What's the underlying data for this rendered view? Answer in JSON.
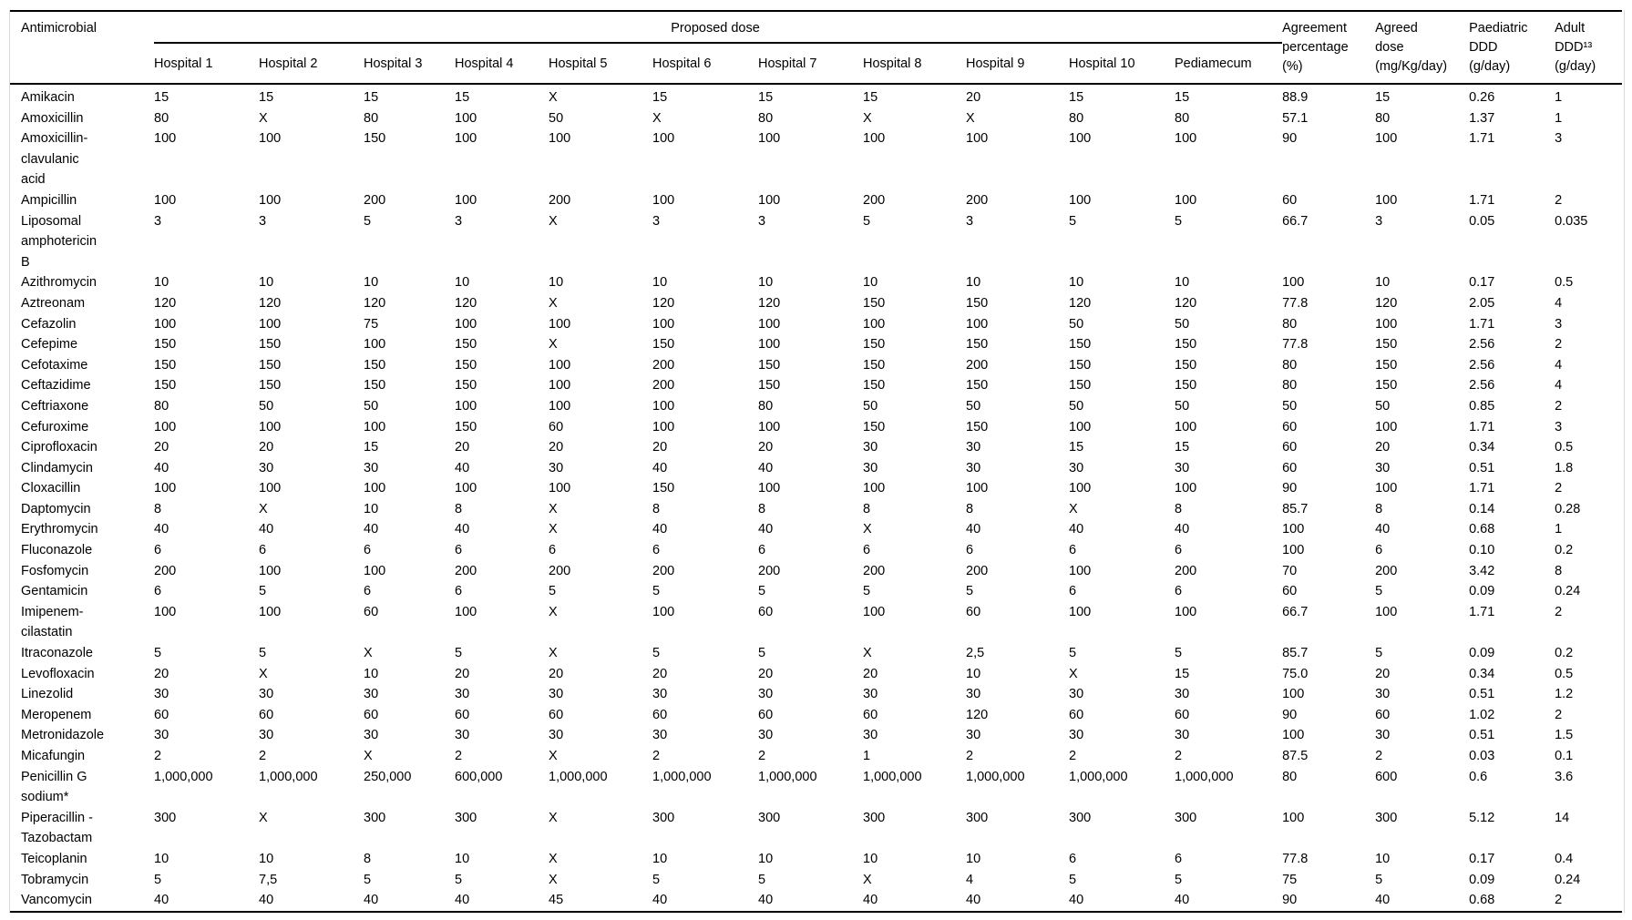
{
  "table": {
    "headers": {
      "antimicrobial": "Antimicrobial",
      "group": "Proposed dose"
    },
    "dose_columns": [
      "Hospital 1",
      "Hospital 2",
      "Hospital 3",
      "Hospital 4",
      "Hospital 5",
      "Hospital 6",
      "Hospital 7",
      "Hospital 8",
      "Hospital 9",
      "Hospital 10",
      "Pediamecum"
    ],
    "summary_columns": [
      "Agreement\npercentage\n(%)",
      "Agreed\ndose\n(mg/Kg/day)",
      "Paediatric\nDDD\n(g/day)",
      "Adult\nDDD¹³\n(g/day)"
    ],
    "rows": [
      {
        "name": "Amikacin",
        "doses": [
          "15",
          "15",
          "15",
          "15",
          "X",
          "15",
          "15",
          "15",
          "20",
          "15",
          "15"
        ],
        "agreement": "88.9",
        "agreed_dose": "15",
        "paediatric_ddd": "0.26",
        "adult_ddd": "1"
      },
      {
        "name": "Amoxicillin",
        "doses": [
          "80",
          "X",
          "80",
          "100",
          "50",
          "X",
          "80",
          "X",
          "X",
          "80",
          "80"
        ],
        "agreement": "57.1",
        "agreed_dose": "80",
        "paediatric_ddd": "1.37",
        "adult_ddd": "1"
      },
      {
        "name": "Amoxicillin-\nclavulanic\nacid",
        "doses": [
          "100",
          "100",
          "150",
          "100",
          "100",
          "100",
          "100",
          "100",
          "100",
          "100",
          "100"
        ],
        "agreement": "90",
        "agreed_dose": "100",
        "paediatric_ddd": "1.71",
        "adult_ddd": "3"
      },
      {
        "name": "Ampicillin",
        "doses": [
          "100",
          "100",
          "200",
          "100",
          "200",
          "100",
          "100",
          "200",
          "200",
          "100",
          "100"
        ],
        "agreement": "60",
        "agreed_dose": "100",
        "paediatric_ddd": "1.71",
        "adult_ddd": "2"
      },
      {
        "name": "Liposomal\namphotericin\nB",
        "doses": [
          "3",
          "3",
          "5",
          "3",
          "X",
          "3",
          "3",
          "5",
          "3",
          "5",
          "5"
        ],
        "agreement": "66.7",
        "agreed_dose": "3",
        "paediatric_ddd": "0.05",
        "adult_ddd": "0.035"
      },
      {
        "name": "Azithromycin",
        "doses": [
          "10",
          "10",
          "10",
          "10",
          "10",
          "10",
          "10",
          "10",
          "10",
          "10",
          "10"
        ],
        "agreement": "100",
        "agreed_dose": "10",
        "paediatric_ddd": "0.17",
        "adult_ddd": "0.5"
      },
      {
        "name": "Aztreonam",
        "doses": [
          "120",
          "120",
          "120",
          "120",
          "X",
          "120",
          "120",
          "150",
          "150",
          "120",
          "120"
        ],
        "agreement": "77.8",
        "agreed_dose": "120",
        "paediatric_ddd": "2.05",
        "adult_ddd": "4"
      },
      {
        "name": "Cefazolin",
        "doses": [
          "100",
          "100",
          "75",
          "100",
          "100",
          "100",
          "100",
          "100",
          "100",
          "50",
          "50"
        ],
        "agreement": "80",
        "agreed_dose": "100",
        "paediatric_ddd": "1.71",
        "adult_ddd": "3"
      },
      {
        "name": "Cefepime",
        "doses": [
          "150",
          "150",
          "100",
          "150",
          "X",
          "150",
          "100",
          "150",
          "150",
          "150",
          "150"
        ],
        "agreement": "77.8",
        "agreed_dose": "150",
        "paediatric_ddd": "2.56",
        "adult_ddd": "2"
      },
      {
        "name": "Cefotaxime",
        "doses": [
          "150",
          "150",
          "150",
          "150",
          "100",
          "200",
          "150",
          "150",
          "200",
          "150",
          "150"
        ],
        "agreement": "80",
        "agreed_dose": "150",
        "paediatric_ddd": "2.56",
        "adult_ddd": "4"
      },
      {
        "name": "Ceftazidime",
        "doses": [
          "150",
          "150",
          "150",
          "150",
          "100",
          "200",
          "150",
          "150",
          "150",
          "150",
          "150"
        ],
        "agreement": "80",
        "agreed_dose": "150",
        "paediatric_ddd": "2.56",
        "adult_ddd": "4"
      },
      {
        "name": "Ceftriaxone",
        "doses": [
          "80",
          "50",
          "50",
          "100",
          "100",
          "100",
          "80",
          "50",
          "50",
          "50",
          "50"
        ],
        "agreement": "50",
        "agreed_dose": "50",
        "paediatric_ddd": "0.85",
        "adult_ddd": "2"
      },
      {
        "name": "Cefuroxime",
        "doses": [
          "100",
          "100",
          "100",
          "150",
          "60",
          "100",
          "100",
          "150",
          "150",
          "100",
          "100"
        ],
        "agreement": "60",
        "agreed_dose": "100",
        "paediatric_ddd": "1.71",
        "adult_ddd": "3"
      },
      {
        "name": "Ciprofloxacin",
        "doses": [
          "20",
          "20",
          "15",
          "20",
          "20",
          "20",
          "20",
          "30",
          "30",
          "15",
          "15"
        ],
        "agreement": "60",
        "agreed_dose": "20",
        "paediatric_ddd": "0.34",
        "adult_ddd": "0.5"
      },
      {
        "name": "Clindamycin",
        "doses": [
          "40",
          "30",
          "30",
          "40",
          "30",
          "40",
          "40",
          "30",
          "30",
          "30",
          "30"
        ],
        "agreement": "60",
        "agreed_dose": "30",
        "paediatric_ddd": "0.51",
        "adult_ddd": "1.8"
      },
      {
        "name": "Cloxacillin",
        "doses": [
          "100",
          "100",
          "100",
          "100",
          "100",
          "150",
          "100",
          "100",
          "100",
          "100",
          "100"
        ],
        "agreement": "90",
        "agreed_dose": "100",
        "paediatric_ddd": "1.71",
        "adult_ddd": "2"
      },
      {
        "name": "Daptomycin",
        "doses": [
          "8",
          "X",
          "10",
          "8",
          "X",
          "8",
          "8",
          "8",
          "8",
          "X",
          "8"
        ],
        "agreement": "85.7",
        "agreed_dose": "8",
        "paediatric_ddd": "0.14",
        "adult_ddd": "0.28"
      },
      {
        "name": "Erythromycin",
        "doses": [
          "40",
          "40",
          "40",
          "40",
          "X",
          "40",
          "40",
          "X",
          "40",
          "40",
          "40"
        ],
        "agreement": "100",
        "agreed_dose": "40",
        "paediatric_ddd": "0.68",
        "adult_ddd": "1"
      },
      {
        "name": "Fluconazole",
        "doses": [
          "6",
          "6",
          "6",
          "6",
          "6",
          "6",
          "6",
          "6",
          "6",
          "6",
          "6"
        ],
        "agreement": "100",
        "agreed_dose": "6",
        "paediatric_ddd": "0.10",
        "adult_ddd": "0.2"
      },
      {
        "name": "Fosfomycin",
        "doses": [
          "200",
          "100",
          "100",
          "200",
          "200",
          "200",
          "200",
          "200",
          "200",
          "100",
          "200"
        ],
        "agreement": "70",
        "agreed_dose": "200",
        "paediatric_ddd": "3.42",
        "adult_ddd": "8"
      },
      {
        "name": "Gentamicin",
        "doses": [
          "6",
          "5",
          "6",
          "6",
          "5",
          "5",
          "5",
          "5",
          "5",
          "6",
          "6"
        ],
        "agreement": "60",
        "agreed_dose": "5",
        "paediatric_ddd": "0.09",
        "adult_ddd": "0.24"
      },
      {
        "name": "Imipenem-\ncilastatin",
        "doses": [
          "100",
          "100",
          "60",
          "100",
          "X",
          "100",
          "60",
          "100",
          "60",
          "100",
          "100"
        ],
        "agreement": "66.7",
        "agreed_dose": "100",
        "paediatric_ddd": "1.71",
        "adult_ddd": "2"
      },
      {
        "name": "Itraconazole",
        "doses": [
          "5",
          "5",
          "X",
          "5",
          "X",
          "5",
          "5",
          "X",
          "2,5",
          "5",
          "5"
        ],
        "agreement": "85.7",
        "agreed_dose": "5",
        "paediatric_ddd": "0.09",
        "adult_ddd": "0.2"
      },
      {
        "name": "Levofloxacin",
        "doses": [
          "20",
          "X",
          "10",
          "20",
          "20",
          "20",
          "20",
          "20",
          "10",
          "X",
          "15"
        ],
        "agreement": "75.0",
        "agreed_dose": "20",
        "paediatric_ddd": "0.34",
        "adult_ddd": "0.5"
      },
      {
        "name": "Linezolid",
        "doses": [
          "30",
          "30",
          "30",
          "30",
          "30",
          "30",
          "30",
          "30",
          "30",
          "30",
          "30"
        ],
        "agreement": "100",
        "agreed_dose": "30",
        "paediatric_ddd": "0.51",
        "adult_ddd": "1.2"
      },
      {
        "name": "Meropenem",
        "doses": [
          "60",
          "60",
          "60",
          "60",
          "60",
          "60",
          "60",
          "60",
          "120",
          "60",
          "60"
        ],
        "agreement": "90",
        "agreed_dose": "60",
        "paediatric_ddd": "1.02",
        "adult_ddd": "2"
      },
      {
        "name": "Metronidazole",
        "doses": [
          "30",
          "30",
          "30",
          "30",
          "30",
          "30",
          "30",
          "30",
          "30",
          "30",
          "30"
        ],
        "agreement": "100",
        "agreed_dose": "30",
        "paediatric_ddd": "0.51",
        "adult_ddd": "1.5"
      },
      {
        "name": "Micafungin",
        "doses": [
          "2",
          "2",
          "X",
          "2",
          "X",
          "2",
          "2",
          "1",
          "2",
          "2",
          "2"
        ],
        "agreement": "87.5",
        "agreed_dose": "2",
        "paediatric_ddd": "0.03",
        "adult_ddd": "0.1"
      },
      {
        "name": "Penicillin G\nsodium*",
        "doses": [
          "1,000,000",
          "1,000,000",
          "250,000",
          "600,000",
          "1,000,000",
          "1,000,000",
          "1,000,000",
          "1,000,000",
          "1,000,000",
          "1,000,000",
          "1,000,000"
        ],
        "agreement": "80",
        "agreed_dose": "600",
        "paediatric_ddd": "0.6",
        "adult_ddd": "3.6"
      },
      {
        "name": "Piperacillin -\nTazobactam",
        "doses": [
          "300",
          "X",
          "300",
          "300",
          "X",
          "300",
          "300",
          "300",
          "300",
          "300",
          "300"
        ],
        "agreement": "100",
        "agreed_dose": "300",
        "paediatric_ddd": "5.12",
        "adult_ddd": "14"
      },
      {
        "name": "Teicoplanin",
        "doses": [
          "10",
          "10",
          "8",
          "10",
          "X",
          "10",
          "10",
          "10",
          "10",
          "6",
          "6"
        ],
        "agreement": "77.8",
        "agreed_dose": "10",
        "paediatric_ddd": "0.17",
        "adult_ddd": "0.4"
      },
      {
        "name": "Tobramycin",
        "doses": [
          "5",
          "7,5",
          "5",
          "5",
          "X",
          "5",
          "5",
          "X",
          "4",
          "5",
          "5"
        ],
        "agreement": "75",
        "agreed_dose": "5",
        "paediatric_ddd": "0.09",
        "adult_ddd": "0.24"
      },
      {
        "name": "Vancomycin",
        "doses": [
          "40",
          "40",
          "40",
          "40",
          "45",
          "40",
          "40",
          "40",
          "40",
          "40",
          "40"
        ],
        "agreement": "90",
        "agreed_dose": "40",
        "paediatric_ddd": "0.68",
        "adult_ddd": "2"
      }
    ]
  }
}
